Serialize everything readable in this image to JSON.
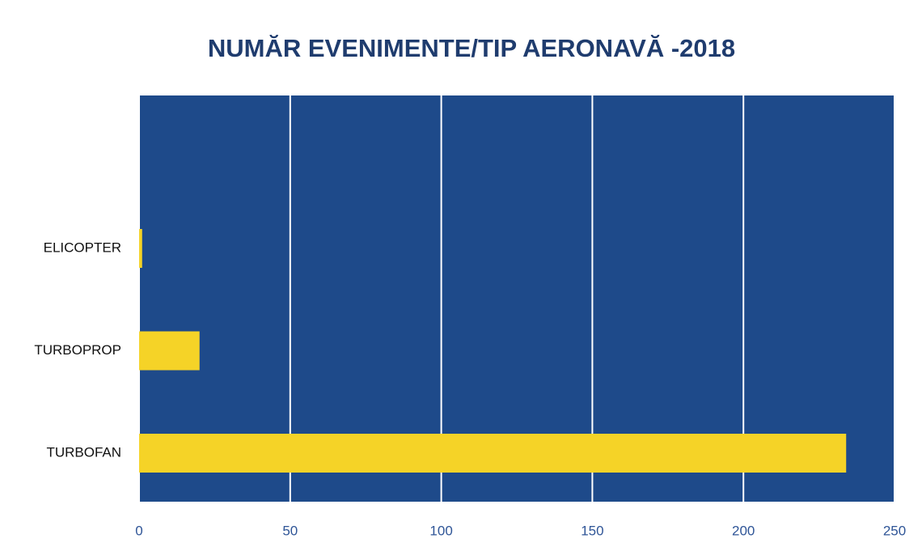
{
  "chart_data": {
    "type": "barh",
    "title": "NUMĂR EVENIMENTE/TIP AERONAVĂ -2018",
    "categories": [
      "ELICOPTER",
      "TURBOPROP",
      "TURBOFAN"
    ],
    "values": [
      1,
      20,
      234
    ],
    "color": "#f5d327",
    "background": "#1e4a8a",
    "grid": true,
    "xlim": [
      0,
      250
    ],
    "xticks": [
      0,
      50,
      100,
      150,
      200,
      250
    ]
  }
}
